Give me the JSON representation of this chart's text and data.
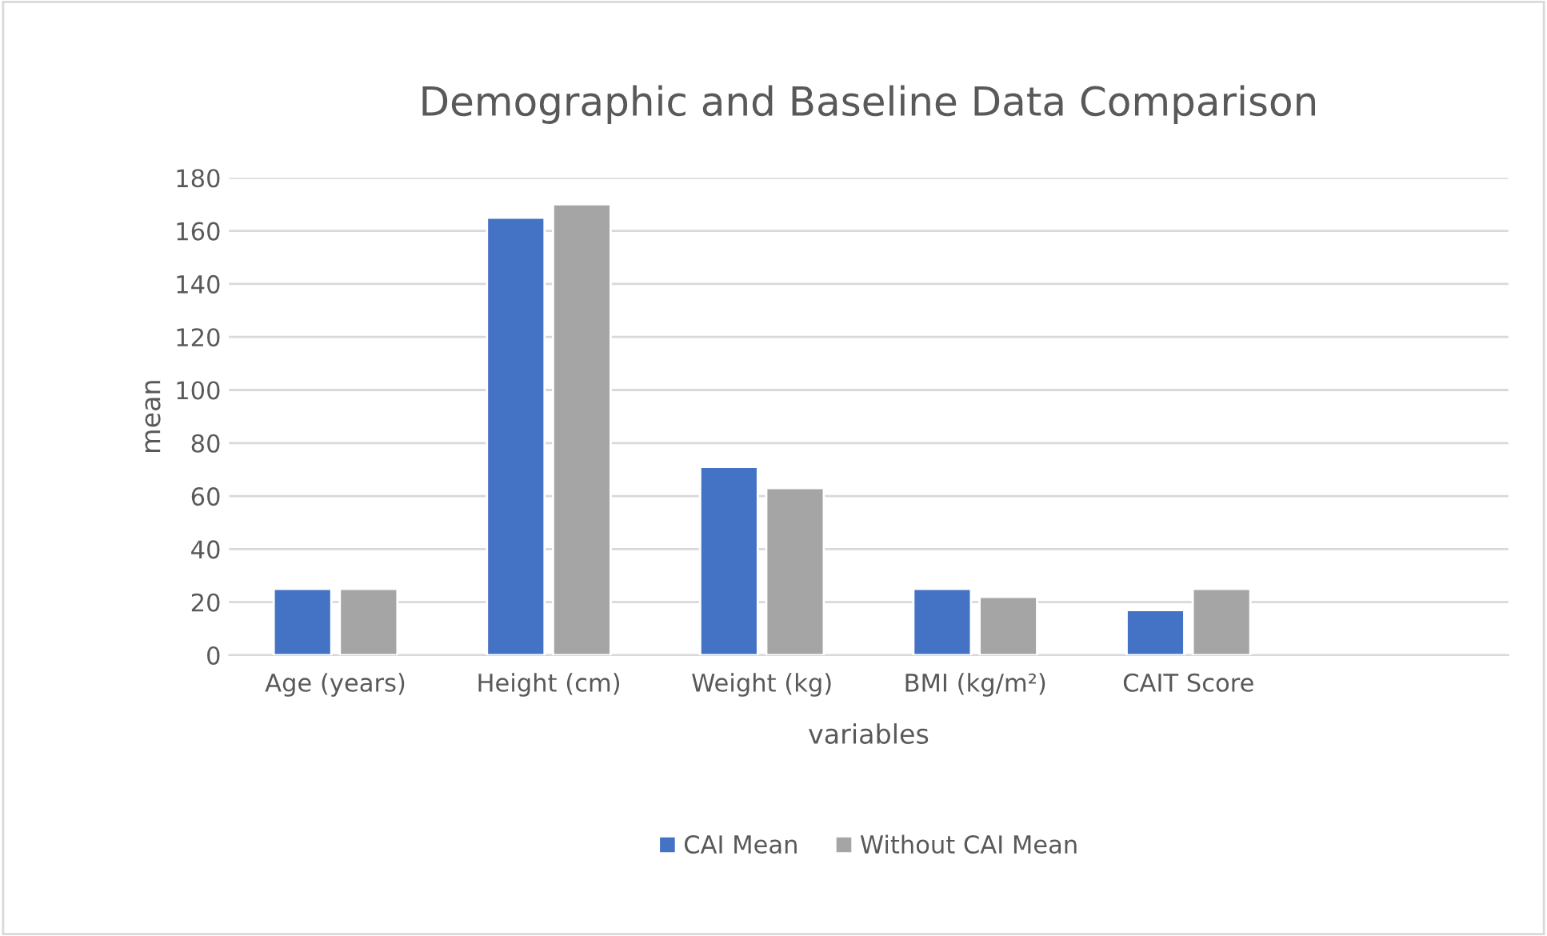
{
  "chart_data": {
    "type": "bar",
    "title": "Demographic and Baseline Data Comparison",
    "xlabel": "variables",
    "ylabel": "mean",
    "categories": [
      "Age (years)",
      "Height (cm)",
      "Weight (kg)",
      "BMI (kg/m²)",
      "CAIT Score",
      null
    ],
    "series": [
      {
        "name": "CAI Mean",
        "color": "#4472c4",
        "values": [
          25,
          165,
          71,
          25,
          17,
          null
        ]
      },
      {
        "name": "Without CAI Mean",
        "color": "#a5a5a5",
        "values": [
          25,
          170,
          63,
          22,
          25,
          null
        ]
      }
    ],
    "ylim": [
      0,
      180
    ],
    "yticks": [
      0,
      20,
      40,
      60,
      80,
      100,
      120,
      140,
      160,
      180
    ],
    "grid": "y",
    "legend": "bottom"
  }
}
